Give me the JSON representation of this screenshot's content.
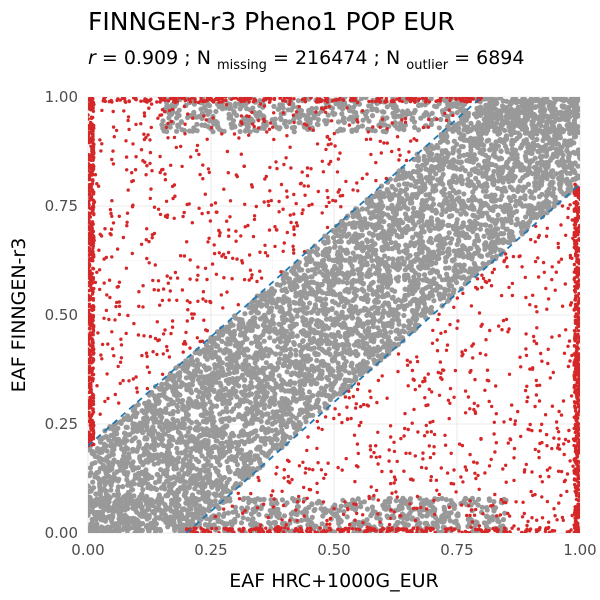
{
  "chart_data": {
    "type": "scatter",
    "title": "FINNGEN-r3 Pheno1 POP EUR",
    "subtitle": {
      "r_label": "r",
      "r_value": "0.909",
      "missing_label": "N",
      "missing_sub": "missing",
      "missing_value": "216474",
      "outlier_label": "N",
      "outlier_sub": "outlier",
      "outlier_value": "6894"
    },
    "xlabel": "EAF HRC+1000G_EUR",
    "ylabel": "EAF FINNGEN-r3",
    "xlim": [
      0,
      1
    ],
    "ylim": [
      0,
      1
    ],
    "xticks": [
      {
        "value": 0,
        "label": "0.00"
      },
      {
        "value": 0.25,
        "label": "0.25"
      },
      {
        "value": 0.5,
        "label": "0.50"
      },
      {
        "value": 0.75,
        "label": "0.75"
      },
      {
        "value": 1,
        "label": "1.00"
      }
    ],
    "yticks": [
      {
        "value": 0,
        "label": "0.00"
      },
      {
        "value": 0.25,
        "label": "0.25"
      },
      {
        "value": 0.5,
        "label": "0.50"
      },
      {
        "value": 0.75,
        "label": "0.75"
      },
      {
        "value": 1,
        "label": "1.00"
      }
    ],
    "grid": true,
    "threshold_offset": 0.2,
    "threshold_lines": [
      {
        "x": [
          0,
          0.8
        ],
        "y": [
          0.2,
          1.0
        ]
      },
      {
        "x": [
          0.2,
          1.0
        ],
        "y": [
          0.0,
          0.8
        ]
      }
    ],
    "series": [
      {
        "role": "inlier",
        "color": "#999999",
        "band_halfwidth": 0.2
      },
      {
        "role": "outlier",
        "color": "#d62728"
      }
    ]
  }
}
